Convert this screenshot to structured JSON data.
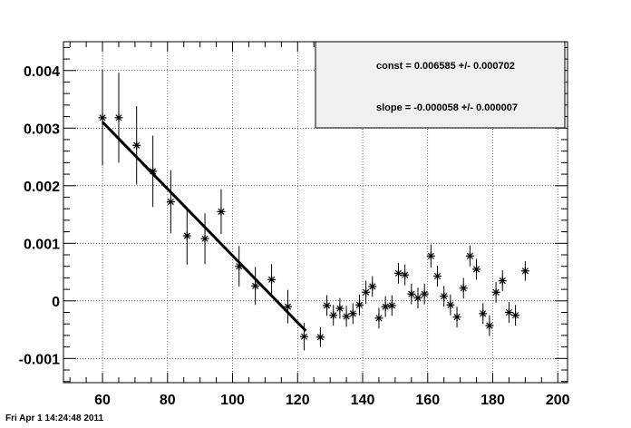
{
  "timestamp": "Fri Apr  1 14:24:48 2011",
  "stats": {
    "const": "const = 0.006585 +/- 0.000702",
    "slope": "slope = -0.000058 +/- 0.000007"
  },
  "chart_data": {
    "type": "scatter",
    "title": "",
    "xlabel": "",
    "ylabel": "",
    "xlim": [
      48,
      203
    ],
    "ylim": [
      -0.00142,
      0.0045
    ],
    "grid": true,
    "x_ticks": [
      60,
      80,
      100,
      120,
      140,
      160,
      180,
      200
    ],
    "x_tick_labels": [
      "60",
      "80",
      "100",
      "120",
      "140",
      "160",
      "180",
      "200"
    ],
    "y_ticks": [
      -0.001,
      0,
      0.001,
      0.002,
      0.003,
      0.004
    ],
    "y_tick_labels": [
      "-0.001",
      "0",
      "0.001",
      "0.002",
      "0.003",
      "0.004"
    ],
    "marker": "asterisk",
    "series": [
      {
        "points": [
          {
            "x": 60,
            "y": 0.00318,
            "err": 0.00083
          },
          {
            "x": 65,
            "y": 0.00318,
            "err": 0.00078
          },
          {
            "x": 70.5,
            "y": 0.0027,
            "err": 0.00068
          },
          {
            "x": 75.5,
            "y": 0.00225,
            "err": 0.00062
          },
          {
            "x": 81,
            "y": 0.00172,
            "err": 0.00055
          },
          {
            "x": 86,
            "y": 0.00113,
            "err": 0.0005
          },
          {
            "x": 91.5,
            "y": 0.00108,
            "err": 0.00044
          },
          {
            "x": 96.5,
            "y": 0.00155,
            "err": 0.00039
          },
          {
            "x": 102,
            "y": 0.0006,
            "err": 0.00035
          },
          {
            "x": 107,
            "y": 0.00026,
            "err": 0.00033
          },
          {
            "x": 112,
            "y": 0.00037,
            "err": 0.00027
          },
          {
            "x": 117,
            "y": -0.0001,
            "err": 0.00029
          },
          {
            "x": 122,
            "y": -0.00062,
            "err": 0.00024
          },
          {
            "x": 127,
            "y": -0.00063,
            "err": 0.00017
          },
          {
            "x": 129,
            "y": -8e-05,
            "err": 0.00018
          },
          {
            "x": 131,
            "y": -0.00025,
            "err": 0.00018
          },
          {
            "x": 133,
            "y": -0.00013,
            "err": 0.00018
          },
          {
            "x": 135,
            "y": -0.00027,
            "err": 0.00018
          },
          {
            "x": 137,
            "y": -0.00022,
            "err": 0.00018
          },
          {
            "x": 139,
            "y": -7e-05,
            "err": 0.00018
          },
          {
            "x": 141,
            "y": 0.00015,
            "err": 0.0002
          },
          {
            "x": 143,
            "y": 0.00025,
            "err": 0.00018
          },
          {
            "x": 145,
            "y": -0.0003,
            "err": 0.00018
          },
          {
            "x": 147,
            "y": -0.0001,
            "err": 0.00018
          },
          {
            "x": 149,
            "y": -8e-05,
            "err": 0.00018
          },
          {
            "x": 151,
            "y": 0.00048,
            "err": 0.00018
          },
          {
            "x": 153,
            "y": 0.00045,
            "err": 0.00018
          },
          {
            "x": 155,
            "y": 0.00012,
            "err": 0.00018
          },
          {
            "x": 157,
            "y": 5e-05,
            "err": 0.00018
          },
          {
            "x": 159,
            "y": 0.00012,
            "err": 0.00018
          },
          {
            "x": 161,
            "y": 0.00078,
            "err": 0.0002
          },
          {
            "x": 163,
            "y": 0.00043,
            "err": 0.00018
          },
          {
            "x": 165,
            "y": 8e-05,
            "err": 0.00018
          },
          {
            "x": 167,
            "y": -7e-05,
            "err": 0.00018
          },
          {
            "x": 169,
            "y": -0.00028,
            "err": 0.00018
          },
          {
            "x": 171,
            "y": 0.00022,
            "err": 0.00018
          },
          {
            "x": 173,
            "y": 0.00078,
            "err": 0.00018
          },
          {
            "x": 175,
            "y": 0.00055,
            "err": 0.00018
          },
          {
            "x": 177,
            "y": -0.00022,
            "err": 0.00018
          },
          {
            "x": 179,
            "y": -0.00043,
            "err": 0.00018
          },
          {
            "x": 181,
            "y": 0.00015,
            "err": 0.00018
          },
          {
            "x": 183,
            "y": 0.00035,
            "err": 0.00018
          },
          {
            "x": 185,
            "y": -0.0002,
            "err": 0.00018
          },
          {
            "x": 187,
            "y": -0.00025,
            "err": 0.00018
          },
          {
            "x": 190,
            "y": 0.00052,
            "err": 0.00017
          }
        ]
      }
    ],
    "fit": {
      "type": "linear",
      "const": 0.006585,
      "slope": -5.8e-05,
      "x_range": [
        60,
        122.5
      ]
    }
  }
}
